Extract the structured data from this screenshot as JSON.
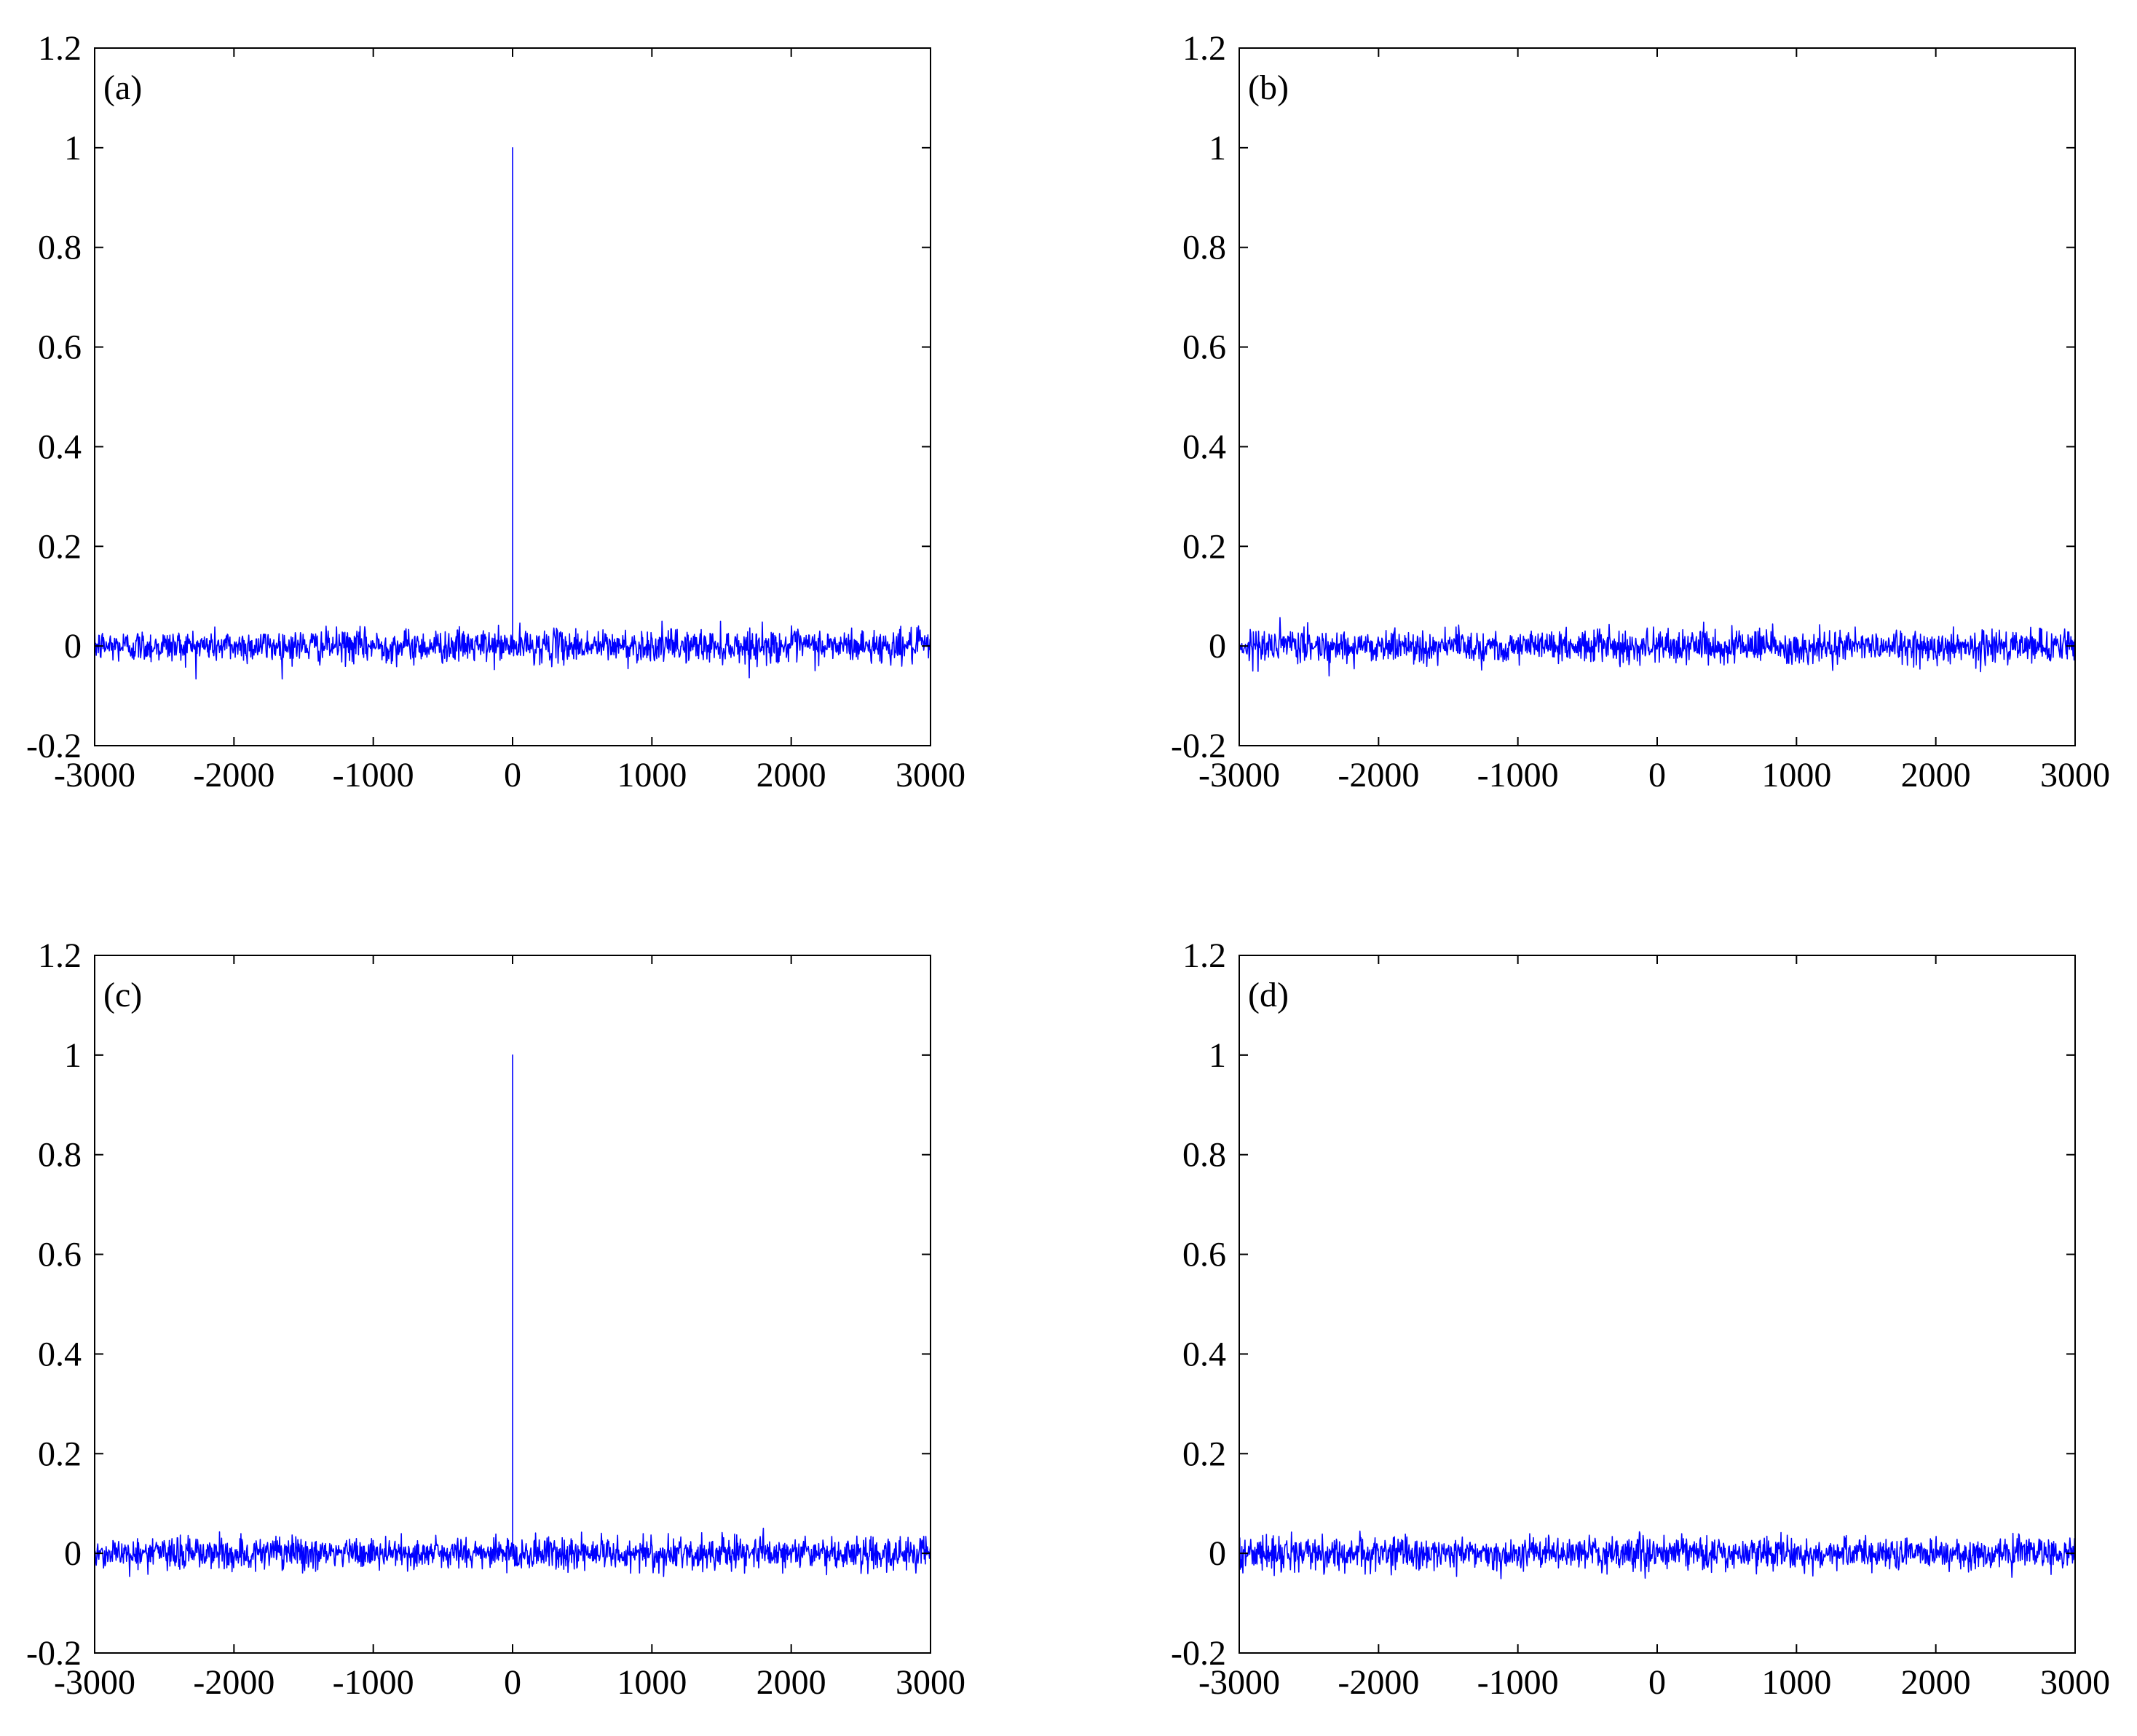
{
  "chart_data": [
    {
      "type": "line",
      "panel_label": "(a)",
      "xlim": [
        -3000,
        3000
      ],
      "ylim": [
        -0.2,
        1.2
      ],
      "xticks": [
        -3000,
        -2000,
        -1000,
        0,
        1000,
        2000,
        3000
      ],
      "yticks": [
        -0.2,
        0,
        0.2,
        0.4,
        0.6,
        0.8,
        1,
        1.2
      ],
      "xtick_labels": [
        "-3000",
        "-2000",
        "-1000",
        "0",
        "1000",
        "2000",
        "3000"
      ],
      "ytick_labels": [
        "-0.2",
        "0",
        "0.2",
        "0.4",
        "0.6",
        "0.8",
        "1",
        "1.2"
      ],
      "grid": false,
      "series": [
        {
          "color": "#0000ff",
          "baseline": 0,
          "noise_amplitude": 0.03,
          "peak": {
            "x": 0,
            "y": 1.0
          }
        }
      ]
    },
    {
      "type": "line",
      "panel_label": "(b)",
      "xlim": [
        -3000,
        3000
      ],
      "ylim": [
        -0.2,
        1.2
      ],
      "xticks": [
        -3000,
        -2000,
        -1000,
        0,
        1000,
        2000,
        3000
      ],
      "yticks": [
        -0.2,
        0,
        0.2,
        0.4,
        0.6,
        0.8,
        1,
        1.2
      ],
      "xtick_labels": [
        "-3000",
        "-2000",
        "-1000",
        "0",
        "1000",
        "2000",
        "3000"
      ],
      "ytick_labels": [
        "-0.2",
        "0",
        "0.2",
        "0.4",
        "0.6",
        "0.8",
        "1",
        "1.2"
      ],
      "grid": false,
      "series": [
        {
          "color": "#0000ff",
          "baseline": 0,
          "noise_amplitude": 0.03,
          "peak": null
        }
      ]
    },
    {
      "type": "line",
      "panel_label": "(c)",
      "xlim": [
        -3000,
        3000
      ],
      "ylim": [
        -0.2,
        1.2
      ],
      "xticks": [
        -3000,
        -2000,
        -1000,
        0,
        1000,
        2000,
        3000
      ],
      "yticks": [
        -0.2,
        0,
        0.2,
        0.4,
        0.6,
        0.8,
        1,
        1.2
      ],
      "xtick_labels": [
        "-3000",
        "-2000",
        "-1000",
        "0",
        "1000",
        "2000",
        "3000"
      ],
      "ytick_labels": [
        "-0.2",
        "0",
        "0.2",
        "0.4",
        "0.6",
        "0.8",
        "1",
        "1.2"
      ],
      "grid": false,
      "series": [
        {
          "color": "#0000ff",
          "baseline": 0,
          "noise_amplitude": 0.03,
          "peak": {
            "x": 0,
            "y": 1.0
          }
        }
      ]
    },
    {
      "type": "line",
      "panel_label": "(d)",
      "xlim": [
        -3000,
        3000
      ],
      "ylim": [
        -0.2,
        1.2
      ],
      "xticks": [
        -3000,
        -2000,
        -1000,
        0,
        1000,
        2000,
        3000
      ],
      "yticks": [
        -0.2,
        0,
        0.2,
        0.4,
        0.6,
        0.8,
        1,
        1.2
      ],
      "xtick_labels": [
        "-3000",
        "-2000",
        "-1000",
        "0",
        "1000",
        "2000",
        "3000"
      ],
      "ytick_labels": [
        "-0.2",
        "0",
        "0.2",
        "0.4",
        "0.6",
        "0.8",
        "1",
        "1.2"
      ],
      "grid": false,
      "series": [
        {
          "color": "#0000ff",
          "baseline": 0,
          "noise_amplitude": 0.03,
          "peak": null
        }
      ]
    }
  ]
}
